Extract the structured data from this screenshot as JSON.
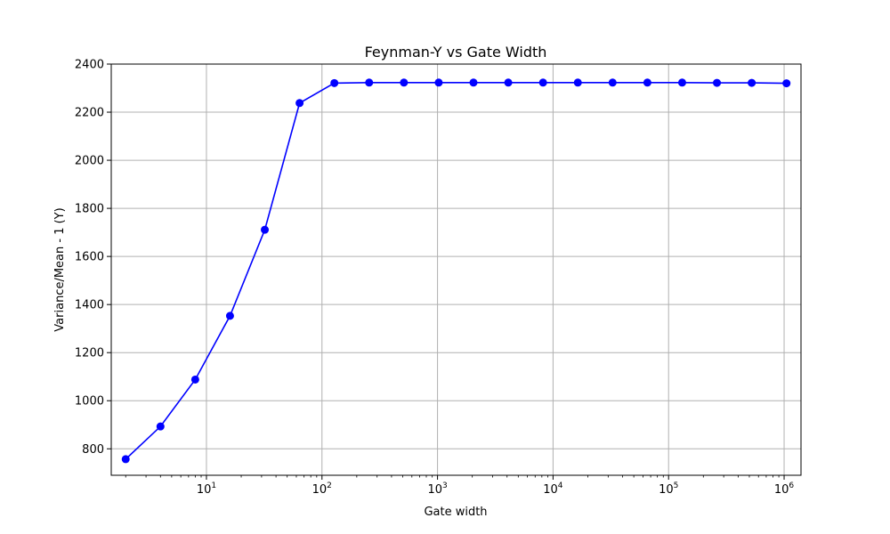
{
  "chart_data": {
    "type": "line",
    "title": "Feynman-Y vs Gate Width",
    "xlabel": "Gate width",
    "ylabel": "Variance/Mean - 1 (Y)",
    "xscale": "log",
    "xlim": [
      1.5,
      1400000
    ],
    "ylim": [
      690,
      2400
    ],
    "grid": true,
    "line_color": "#0000ff",
    "marker": "circle",
    "x_ticks": [
      {
        "value": 10,
        "label_base": "10",
        "label_exp": "1"
      },
      {
        "value": 100,
        "label_base": "10",
        "label_exp": "2"
      },
      {
        "value": 1000,
        "label_base": "10",
        "label_exp": "3"
      },
      {
        "value": 10000,
        "label_base": "10",
        "label_exp": "4"
      },
      {
        "value": 100000,
        "label_base": "10",
        "label_exp": "5"
      },
      {
        "value": 1000000,
        "label_base": "10",
        "label_exp": "6"
      }
    ],
    "y_ticks": [
      800,
      1000,
      1200,
      1400,
      1600,
      1800,
      2000,
      2200,
      2400
    ],
    "series": [
      {
        "x": [
          2,
          4,
          8,
          16,
          32,
          64,
          128,
          256,
          512,
          1024,
          2048,
          4096,
          8192,
          16384,
          32768,
          65536,
          131072,
          262144,
          524288,
          1048576
        ],
        "values": [
          757,
          893,
          1088,
          1353,
          1711,
          2238,
          2321,
          2323,
          2323,
          2323,
          2323,
          2323,
          2323,
          2323,
          2323,
          2323,
          2323,
          2322,
          2322,
          2320
        ]
      }
    ]
  }
}
